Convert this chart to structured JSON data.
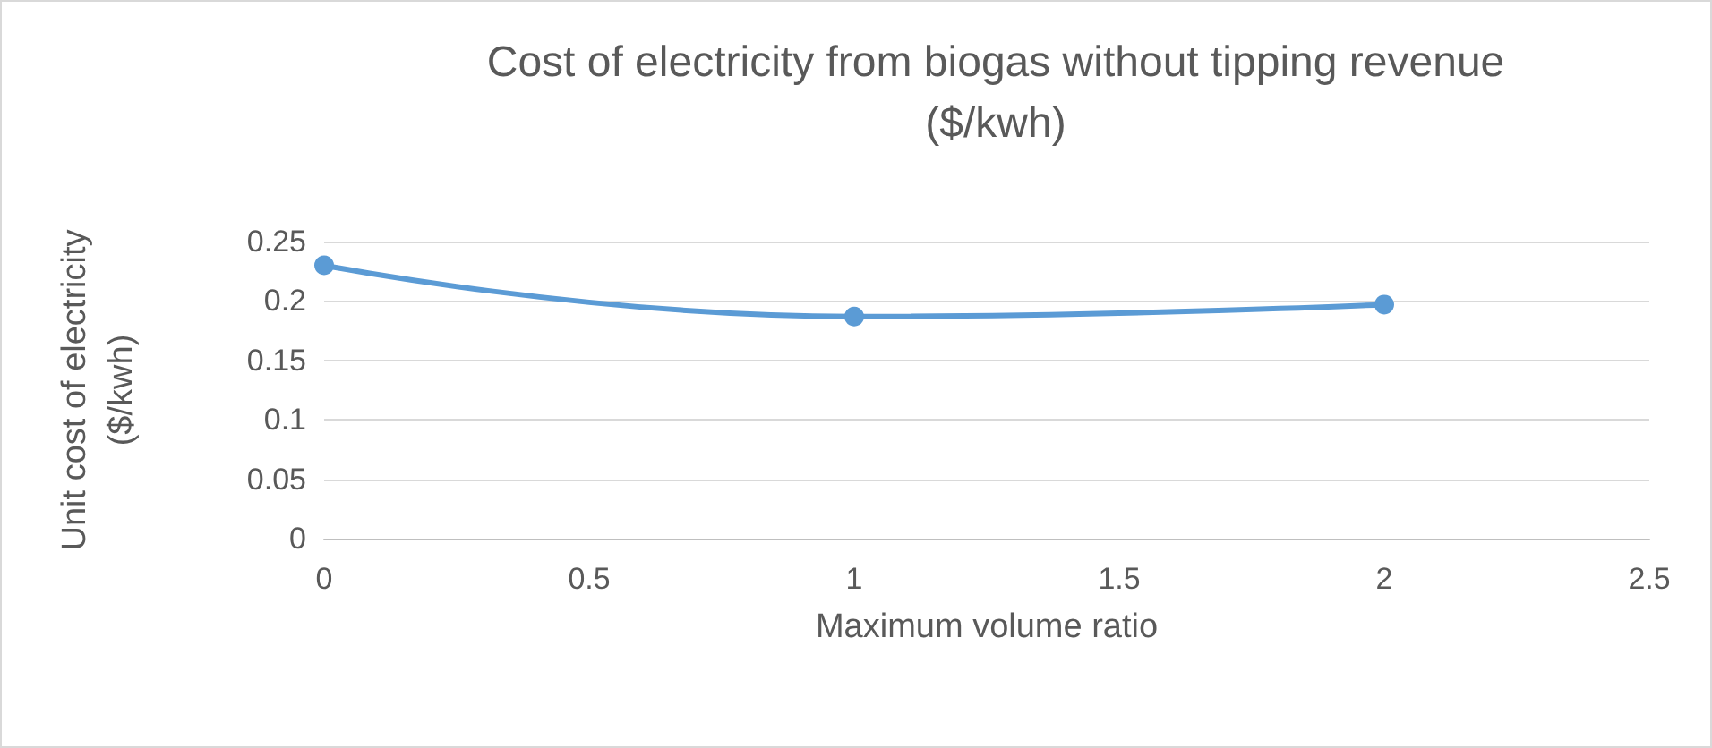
{
  "chart_data": {
    "type": "line",
    "title": "Cost of electricity from biogas without tipping revenue ($/kwh)",
    "xlabel": "Maximum volume ratio",
    "ylabel": "Unit cost of electricity ($/kwh)",
    "x": [
      0,
      1,
      2
    ],
    "series": [
      {
        "color": "#5b9bd5",
        "values": [
          0.23,
          0.187,
          0.197
        ]
      }
    ],
    "xlim": [
      0,
      2.5
    ],
    "xticks": [
      0,
      0.5,
      1,
      1.5,
      2,
      2.5
    ],
    "ylim": [
      0,
      0.25
    ],
    "yticks": [
      0,
      0.05,
      0.1,
      0.15,
      0.2,
      0.25
    ],
    "grid": "y",
    "marker": "circle",
    "line_style": "solid"
  }
}
